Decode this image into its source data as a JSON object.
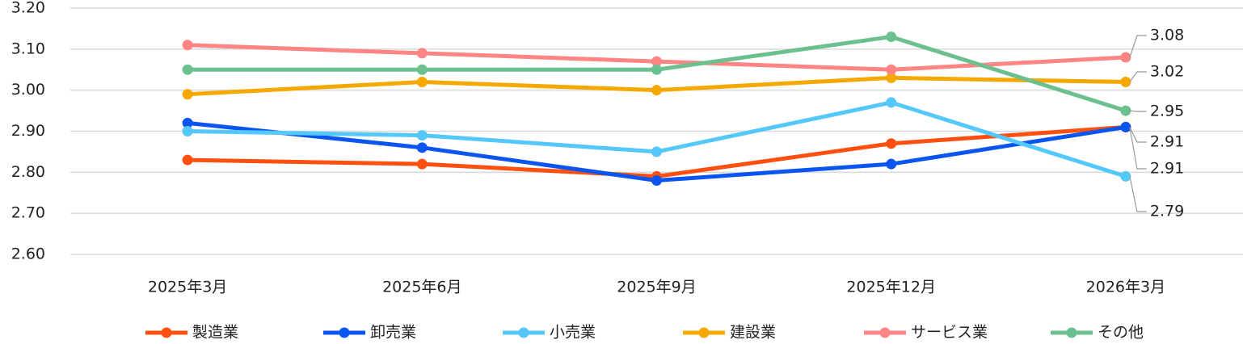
{
  "chart_data": {
    "type": "line",
    "categories": [
      "2025年3月",
      "2025年6月",
      "2025年9月",
      "2025年12月",
      "2026年3月"
    ],
    "series": [
      {
        "name": "製造業",
        "color": "#ff5010",
        "values": [
          2.83,
          2.82,
          2.79,
          2.87,
          2.91
        ]
      },
      {
        "name": "卸売業",
        "color": "#0a55f0",
        "values": [
          2.92,
          2.86,
          2.78,
          2.82,
          2.91
        ]
      },
      {
        "name": "小売業",
        "color": "#55c8fa",
        "values": [
          2.9,
          2.89,
          2.85,
          2.97,
          2.79
        ]
      },
      {
        "name": "建設業",
        "color": "#f5a800",
        "values": [
          2.99,
          3.02,
          3.0,
          3.03,
          3.02
        ]
      },
      {
        "name": "サービス業",
        "color": "#ff8585",
        "values": [
          3.11,
          3.09,
          3.07,
          3.05,
          3.08
        ]
      },
      {
        "name": "その他",
        "color": "#6cc090",
        "values": [
          3.05,
          3.05,
          3.05,
          3.13,
          2.95
        ]
      }
    ],
    "ylim": [
      2.6,
      3.2
    ],
    "yticks": [
      {
        "value": 2.6,
        "label": "2.60"
      },
      {
        "value": 2.7,
        "label": "2.70"
      },
      {
        "value": 2.8,
        "label": "2.80"
      },
      {
        "value": 2.9,
        "label": "2.90"
      },
      {
        "value": 3.0,
        "label": "3.00"
      },
      {
        "value": 3.1,
        "label": "3.10"
      },
      {
        "value": 3.2,
        "label": "3.20"
      }
    ],
    "grid": true,
    "legend": "bottom"
  }
}
